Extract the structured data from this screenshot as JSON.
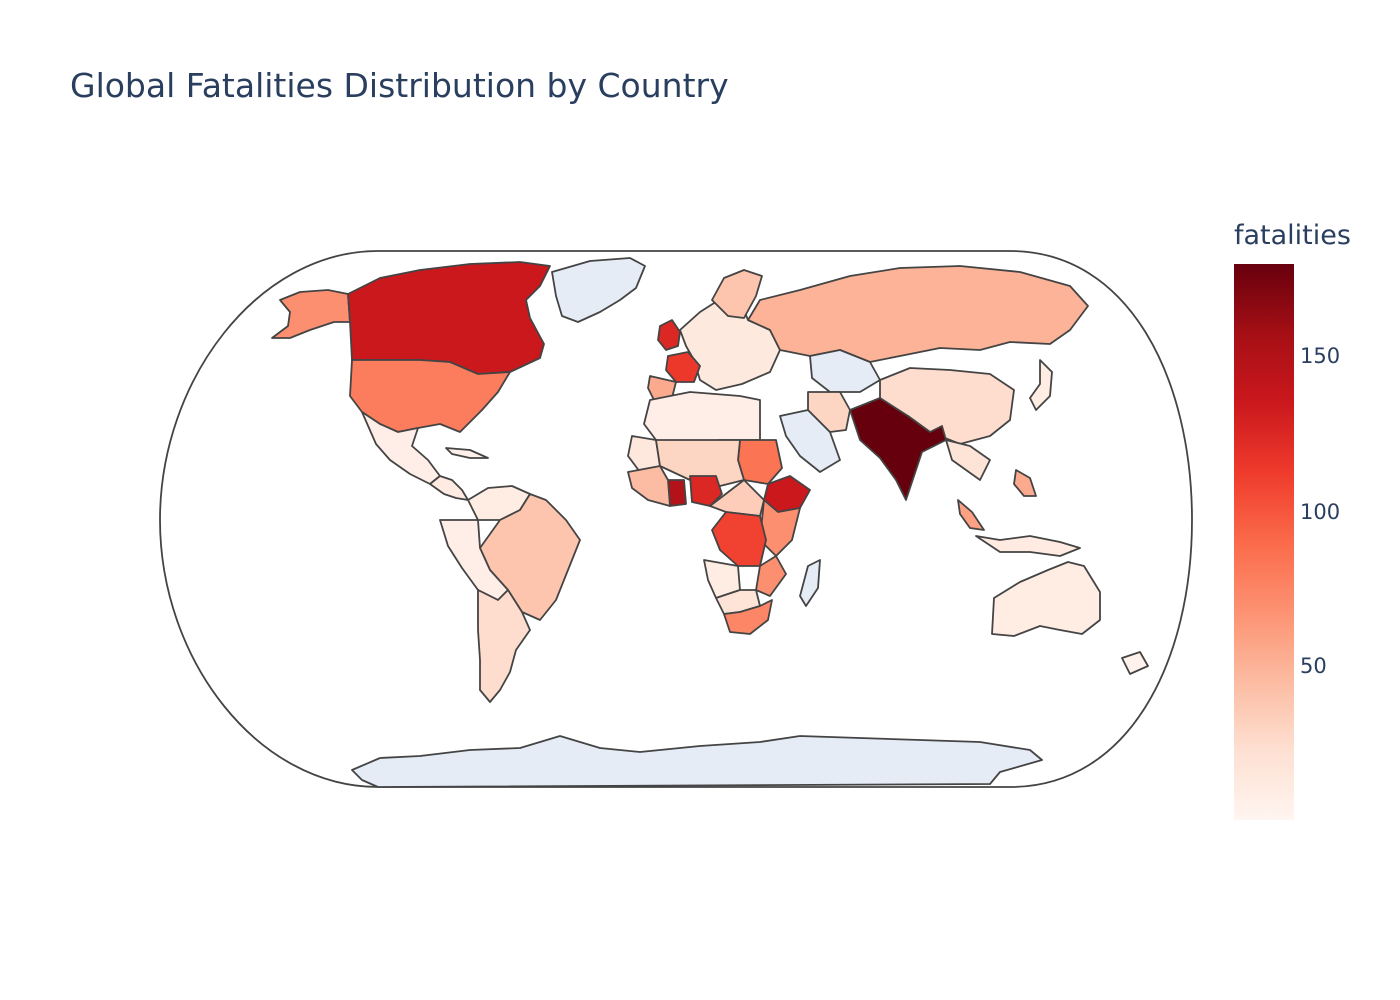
{
  "title": "Global Fatalities Distribution by Country",
  "colorbar": {
    "title": "fatalities",
    "colorscale": "Reds",
    "min": 1,
    "max": 180,
    "ticks": [
      {
        "value": 150,
        "label": "150"
      },
      {
        "value": 100,
        "label": "100"
      },
      {
        "value": 50,
        "label": "50"
      }
    ],
    "nodata_color": "#e5ecf6"
  },
  "chart_data": {
    "type": "choropleth",
    "projection": "natural earth",
    "color_variable": "fatalities",
    "countries": [
      {
        "name": "India",
        "value": 180
      },
      {
        "name": "Canada",
        "value": 135
      },
      {
        "name": "Ethiopia",
        "value": 135
      },
      {
        "name": "Ghana",
        "value": 150
      },
      {
        "name": "Nigeria",
        "value": 125
      },
      {
        "name": "United Kingdom",
        "value": 125
      },
      {
        "name": "France",
        "value": 115
      },
      {
        "name": "Democratic Republic of the Congo",
        "value": 110
      },
      {
        "name": "Sudan",
        "value": 85
      },
      {
        "name": "United States",
        "value": 80
      },
      {
        "name": "South Africa",
        "value": 75
      },
      {
        "name": "Mozambique",
        "value": 70
      },
      {
        "name": "Alaska (United States)",
        "value": 70
      },
      {
        "name": "Russia",
        "value": 50
      },
      {
        "name": "Brazil",
        "value": 40
      },
      {
        "name": "Mauritania",
        "value": 15
      },
      {
        "name": "Malaysia",
        "value": 60
      },
      {
        "name": "Philippines",
        "value": 55
      },
      {
        "name": "Argentina",
        "value": 25
      },
      {
        "name": "China",
        "value": 25
      },
      {
        "name": "Australia",
        "value": 10
      },
      {
        "name": "Kazakhstan",
        "value": null
      },
      {
        "name": "Saudi Arabia",
        "value": null
      },
      {
        "name": "Greenland",
        "value": null
      },
      {
        "name": "Madagascar",
        "value": null
      },
      {
        "name": "Antarctica",
        "value": null
      }
    ]
  }
}
